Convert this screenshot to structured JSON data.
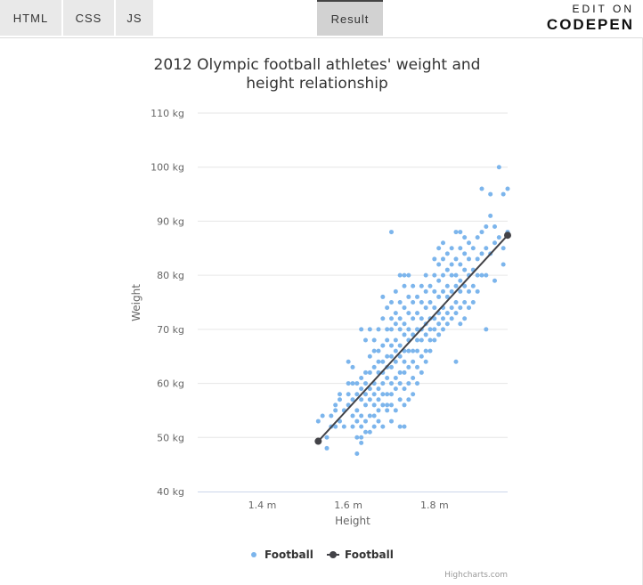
{
  "tabs": [
    {
      "label": "HTML"
    },
    {
      "label": "CSS"
    },
    {
      "label": "JS"
    },
    {
      "label": "Result"
    }
  ],
  "codepen": {
    "edit": "EDIT ON",
    "brand": "CODEPEN"
  },
  "chart_data": {
    "type": "scatter",
    "title": "2012 Olympic football athletes' weight and height relationship",
    "title_lines": [
      "2012 Olympic football athletes' weight and",
      "height relationship"
    ],
    "xlabel": "Height",
    "ylabel": "Weight",
    "xlim": [
      1.25,
      1.97
    ],
    "ylim": [
      40,
      110
    ],
    "x_ticks": [
      1.4,
      1.6,
      1.8
    ],
    "x_tick_labels": [
      "1.4 m",
      "1.6 m",
      "1.8 m"
    ],
    "y_ticks": [
      40,
      50,
      60,
      70,
      80,
      90,
      100,
      110
    ],
    "y_tick_labels": [
      "40 kg",
      "50 kg",
      "60 kg",
      "70 kg",
      "80 kg",
      "90 kg",
      "100 kg",
      "110 kg"
    ],
    "grid": true,
    "legend_position": "bottom-center",
    "credits": "Highcharts.com",
    "colors": {
      "scatter": "#7cb5ec",
      "line": "#434348",
      "grid": "#e6e6e6",
      "axis": "#ccd6eb"
    },
    "series": [
      {
        "name": "Football",
        "type": "scatter",
        "points": [
          [
            1.53,
            53
          ],
          [
            1.54,
            54
          ],
          [
            1.55,
            50
          ],
          [
            1.55,
            48
          ],
          [
            1.56,
            52
          ],
          [
            1.56,
            54
          ],
          [
            1.57,
            55
          ],
          [
            1.57,
            56
          ],
          [
            1.58,
            53
          ],
          [
            1.58,
            58
          ],
          [
            1.59,
            52
          ],
          [
            1.59,
            55
          ],
          [
            1.6,
            56
          ],
          [
            1.6,
            58
          ],
          [
            1.6,
            60
          ],
          [
            1.6,
            64
          ],
          [
            1.61,
            52
          ],
          [
            1.61,
            54
          ],
          [
            1.61,
            57
          ],
          [
            1.61,
            60
          ],
          [
            1.61,
            63
          ],
          [
            1.62,
            50
          ],
          [
            1.62,
            47
          ],
          [
            1.62,
            53
          ],
          [
            1.62,
            55
          ],
          [
            1.62,
            58
          ],
          [
            1.62,
            60
          ],
          [
            1.63,
            49
          ],
          [
            1.63,
            50
          ],
          [
            1.63,
            52
          ],
          [
            1.63,
            54
          ],
          [
            1.63,
            57
          ],
          [
            1.63,
            59
          ],
          [
            1.63,
            61
          ],
          [
            1.63,
            70
          ],
          [
            1.64,
            53
          ],
          [
            1.64,
            56
          ],
          [
            1.64,
            58
          ],
          [
            1.64,
            60
          ],
          [
            1.64,
            62
          ],
          [
            1.64,
            68
          ],
          [
            1.65,
            51
          ],
          [
            1.65,
            54
          ],
          [
            1.65,
            57
          ],
          [
            1.65,
            59
          ],
          [
            1.65,
            62
          ],
          [
            1.65,
            65
          ],
          [
            1.65,
            70
          ],
          [
            1.66,
            54
          ],
          [
            1.66,
            56
          ],
          [
            1.66,
            58
          ],
          [
            1.66,
            60
          ],
          [
            1.66,
            63
          ],
          [
            1.66,
            66
          ],
          [
            1.66,
            68
          ],
          [
            1.67,
            53
          ],
          [
            1.67,
            55
          ],
          [
            1.67,
            57
          ],
          [
            1.67,
            59
          ],
          [
            1.67,
            62
          ],
          [
            1.67,
            64
          ],
          [
            1.67,
            66
          ],
          [
            1.67,
            70
          ],
          [
            1.68,
            52
          ],
          [
            1.68,
            56
          ],
          [
            1.68,
            58
          ],
          [
            1.68,
            60
          ],
          [
            1.68,
            62
          ],
          [
            1.68,
            64
          ],
          [
            1.68,
            67
          ],
          [
            1.68,
            72
          ],
          [
            1.68,
            76
          ],
          [
            1.69,
            55
          ],
          [
            1.69,
            58
          ],
          [
            1.69,
            61
          ],
          [
            1.69,
            63
          ],
          [
            1.69,
            65
          ],
          [
            1.69,
            68
          ],
          [
            1.69,
            70
          ],
          [
            1.69,
            74
          ],
          [
            1.7,
            56
          ],
          [
            1.7,
            58
          ],
          [
            1.7,
            60
          ],
          [
            1.7,
            63
          ],
          [
            1.7,
            65
          ],
          [
            1.7,
            67
          ],
          [
            1.7,
            70
          ],
          [
            1.7,
            72
          ],
          [
            1.7,
            75
          ],
          [
            1.7,
            88
          ],
          [
            1.71,
            55
          ],
          [
            1.71,
            59
          ],
          [
            1.71,
            61
          ],
          [
            1.71,
            64
          ],
          [
            1.71,
            66
          ],
          [
            1.71,
            68
          ],
          [
            1.71,
            71
          ],
          [
            1.71,
            73
          ],
          [
            1.71,
            77
          ],
          [
            1.72,
            52
          ],
          [
            1.72,
            57
          ],
          [
            1.72,
            60
          ],
          [
            1.72,
            62
          ],
          [
            1.72,
            65
          ],
          [
            1.72,
            67
          ],
          [
            1.72,
            70
          ],
          [
            1.72,
            72
          ],
          [
            1.72,
            75
          ],
          [
            1.72,
            80
          ],
          [
            1.73,
            52
          ],
          [
            1.73,
            56
          ],
          [
            1.73,
            59
          ],
          [
            1.73,
            62
          ],
          [
            1.73,
            64
          ],
          [
            1.73,
            66
          ],
          [
            1.73,
            69
          ],
          [
            1.73,
            71
          ],
          [
            1.73,
            74
          ],
          [
            1.73,
            78
          ],
          [
            1.73,
            80
          ],
          [
            1.74,
            57
          ],
          [
            1.74,
            60
          ],
          [
            1.74,
            63
          ],
          [
            1.74,
            66
          ],
          [
            1.74,
            68
          ],
          [
            1.74,
            70
          ],
          [
            1.74,
            73
          ],
          [
            1.74,
            76
          ],
          [
            1.74,
            80
          ],
          [
            1.75,
            58
          ],
          [
            1.75,
            61
          ],
          [
            1.75,
            64
          ],
          [
            1.75,
            66
          ],
          [
            1.75,
            69
          ],
          [
            1.75,
            72
          ],
          [
            1.75,
            75
          ],
          [
            1.75,
            78
          ],
          [
            1.76,
            60
          ],
          [
            1.76,
            63
          ],
          [
            1.76,
            66
          ],
          [
            1.76,
            68
          ],
          [
            1.76,
            70
          ],
          [
            1.76,
            73
          ],
          [
            1.76,
            76
          ],
          [
            1.77,
            62
          ],
          [
            1.77,
            65
          ],
          [
            1.77,
            68
          ],
          [
            1.77,
            70
          ],
          [
            1.77,
            72
          ],
          [
            1.77,
            75
          ],
          [
            1.77,
            78
          ],
          [
            1.78,
            64
          ],
          [
            1.78,
            66
          ],
          [
            1.78,
            69
          ],
          [
            1.78,
            71
          ],
          [
            1.78,
            74
          ],
          [
            1.78,
            77
          ],
          [
            1.78,
            80
          ],
          [
            1.79,
            66
          ],
          [
            1.79,
            68
          ],
          [
            1.79,
            70
          ],
          [
            1.79,
            72
          ],
          [
            1.79,
            75
          ],
          [
            1.79,
            78
          ],
          [
            1.8,
            68
          ],
          [
            1.8,
            70
          ],
          [
            1.8,
            72
          ],
          [
            1.8,
            74
          ],
          [
            1.8,
            77
          ],
          [
            1.8,
            80
          ],
          [
            1.8,
            83
          ],
          [
            1.81,
            69
          ],
          [
            1.81,
            71
          ],
          [
            1.81,
            73
          ],
          [
            1.81,
            76
          ],
          [
            1.81,
            79
          ],
          [
            1.81,
            82
          ],
          [
            1.81,
            85
          ],
          [
            1.82,
            70
          ],
          [
            1.82,
            72
          ],
          [
            1.82,
            74
          ],
          [
            1.82,
            77
          ],
          [
            1.82,
            80
          ],
          [
            1.82,
            83
          ],
          [
            1.82,
            86
          ],
          [
            1.83,
            71
          ],
          [
            1.83,
            73
          ],
          [
            1.83,
            76
          ],
          [
            1.83,
            78
          ],
          [
            1.83,
            81
          ],
          [
            1.83,
            84
          ],
          [
            1.84,
            72
          ],
          [
            1.84,
            74
          ],
          [
            1.84,
            77
          ],
          [
            1.84,
            80
          ],
          [
            1.84,
            82
          ],
          [
            1.84,
            85
          ],
          [
            1.85,
            73
          ],
          [
            1.85,
            75
          ],
          [
            1.85,
            78
          ],
          [
            1.85,
            80
          ],
          [
            1.85,
            83
          ],
          [
            1.85,
            88
          ],
          [
            1.85,
            64
          ],
          [
            1.86,
            71
          ],
          [
            1.86,
            74
          ],
          [
            1.86,
            77
          ],
          [
            1.86,
            79
          ],
          [
            1.86,
            82
          ],
          [
            1.86,
            85
          ],
          [
            1.86,
            88
          ],
          [
            1.87,
            72
          ],
          [
            1.87,
            75
          ],
          [
            1.87,
            78
          ],
          [
            1.87,
            81
          ],
          [
            1.87,
            84
          ],
          [
            1.87,
            87
          ],
          [
            1.88,
            74
          ],
          [
            1.88,
            77
          ],
          [
            1.88,
            80
          ],
          [
            1.88,
            83
          ],
          [
            1.88,
            86
          ],
          [
            1.89,
            75
          ],
          [
            1.89,
            78
          ],
          [
            1.89,
            81
          ],
          [
            1.89,
            85
          ],
          [
            1.9,
            77
          ],
          [
            1.9,
            80
          ],
          [
            1.9,
            83
          ],
          [
            1.9,
            87
          ],
          [
            1.91,
            80
          ],
          [
            1.91,
            84
          ],
          [
            1.91,
            88
          ],
          [
            1.91,
            96
          ],
          [
            1.92,
            70
          ],
          [
            1.92,
            80
          ],
          [
            1.92,
            85
          ],
          [
            1.92,
            89
          ],
          [
            1.93,
            84
          ],
          [
            1.93,
            91
          ],
          [
            1.93,
            95
          ],
          [
            1.94,
            86
          ],
          [
            1.94,
            89
          ],
          [
            1.94,
            79
          ],
          [
            1.95,
            87
          ],
          [
            1.95,
            100
          ],
          [
            1.96,
            82
          ],
          [
            1.96,
            85
          ],
          [
            1.96,
            95
          ],
          [
            1.97,
            88
          ],
          [
            1.97,
            96
          ],
          [
            1.69,
            56
          ],
          [
            1.7,
            53
          ],
          [
            1.66,
            52
          ],
          [
            1.64,
            51
          ],
          [
            1.58,
            57
          ],
          [
            1.57,
            52
          ]
        ]
      },
      {
        "name": "Football",
        "type": "line",
        "points": [
          [
            1.53,
            49.3
          ],
          [
            1.97,
            87.4
          ]
        ]
      }
    ]
  }
}
